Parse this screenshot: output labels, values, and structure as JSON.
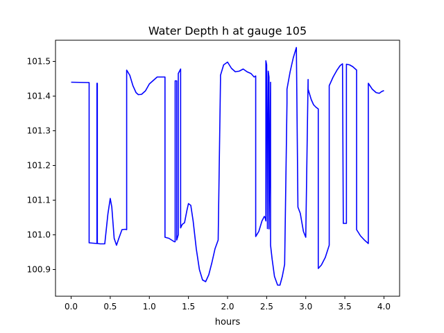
{
  "chart_data": {
    "type": "line",
    "title": "Water Depth h at gauge 105",
    "xlabel": "hours",
    "ylabel": "",
    "xlim": [
      -0.2,
      4.2
    ],
    "ylim": [
      100.823,
      101.561
    ],
    "grid": false,
    "x_ticks": [
      {
        "value": 0.0,
        "label": "0.0"
      },
      {
        "value": 0.5,
        "label": "0.5"
      },
      {
        "value": 1.0,
        "label": "1.0"
      },
      {
        "value": 1.5,
        "label": "1.5"
      },
      {
        "value": 2.0,
        "label": "2.0"
      },
      {
        "value": 2.5,
        "label": "2.5"
      },
      {
        "value": 3.0,
        "label": "3.0"
      },
      {
        "value": 3.5,
        "label": "3.5"
      },
      {
        "value": 4.0,
        "label": "4.0"
      }
    ],
    "y_ticks": [
      {
        "value": 100.9,
        "label": "100.9"
      },
      {
        "value": 101.0,
        "label": "101.0"
      },
      {
        "value": 101.1,
        "label": "101.1"
      },
      {
        "value": 101.2,
        "label": "101.2"
      },
      {
        "value": 101.3,
        "label": "101.3"
      },
      {
        "value": 101.4,
        "label": "101.4"
      },
      {
        "value": 101.5,
        "label": "101.5"
      }
    ],
    "series": [
      {
        "color": "#0000ff",
        "x": [
          0.0,
          0.23,
          0.23,
          0.33,
          0.33,
          0.335,
          0.335,
          0.37,
          0.43,
          0.47,
          0.5,
          0.52,
          0.55,
          0.58,
          0.61,
          0.65,
          0.69,
          0.71,
          0.71,
          0.75,
          0.79,
          0.83,
          0.86,
          0.9,
          0.95,
          1.0,
          1.05,
          1.1,
          1.16,
          1.2,
          1.2,
          1.25,
          1.32,
          1.33,
          1.33,
          1.35,
          1.35,
          1.37,
          1.37,
          1.4,
          1.4,
          1.42,
          1.42,
          1.45,
          1.48,
          1.5,
          1.53,
          1.56,
          1.6,
          1.64,
          1.68,
          1.72,
          1.76,
          1.8,
          1.84,
          1.88,
          1.91,
          1.91,
          1.95,
          2.0,
          2.05,
          2.1,
          2.15,
          2.2,
          2.25,
          2.3,
          2.34,
          2.36,
          2.36,
          2.4,
          2.44,
          2.47,
          2.48,
          2.49,
          2.49,
          2.5,
          2.51,
          2.51,
          2.52,
          2.53,
          2.53,
          2.55,
          2.55,
          2.57,
          2.6,
          2.64,
          2.67,
          2.7,
          2.73,
          2.76,
          2.76,
          2.8,
          2.84,
          2.88,
          2.9,
          2.9,
          2.93,
          2.97,
          3.0,
          3.03,
          3.03,
          3.07,
          3.1,
          3.13,
          3.16,
          3.16,
          3.2,
          3.25,
          3.3,
          3.3,
          3.35,
          3.4,
          3.44,
          3.47,
          3.47,
          3.48,
          3.48,
          3.52,
          3.52,
          3.56,
          3.6,
          3.65,
          3.65,
          3.7,
          3.75,
          3.8,
          3.8,
          3.85,
          3.9,
          3.94,
          3.97,
          4.0
        ],
        "values": [
          101.44,
          101.439,
          100.977,
          100.975,
          101.437,
          101.437,
          100.975,
          100.974,
          100.974,
          101.06,
          101.105,
          101.08,
          100.99,
          100.97,
          100.99,
          101.015,
          101.016,
          101.015,
          101.475,
          101.46,
          101.43,
          101.41,
          101.404,
          101.405,
          101.415,
          101.435,
          101.445,
          101.455,
          101.455,
          101.455,
          100.993,
          100.99,
          100.98,
          100.98,
          101.444,
          101.444,
          100.985,
          101.0,
          101.465,
          101.478,
          101.02,
          101.03,
          101.03,
          101.035,
          101.07,
          101.09,
          101.085,
          101.04,
          100.96,
          100.9,
          100.87,
          100.865,
          100.885,
          100.92,
          100.96,
          100.985,
          101.45,
          101.46,
          101.49,
          101.498,
          101.48,
          101.47,
          101.472,
          101.478,
          101.47,
          101.465,
          101.455,
          101.458,
          100.995,
          101.01,
          101.04,
          101.053,
          101.05,
          101.04,
          101.502,
          101.49,
          101.02,
          101.018,
          101.472,
          101.455,
          101.017,
          101.44,
          100.97,
          100.93,
          100.88,
          100.855,
          100.855,
          100.88,
          100.915,
          101.38,
          101.42,
          101.47,
          101.51,
          101.54,
          101.08,
          101.08,
          101.062,
          101.01,
          100.993,
          101.448,
          101.42,
          101.39,
          101.375,
          101.368,
          101.363,
          100.903,
          100.913,
          100.935,
          100.97,
          101.43,
          101.455,
          101.475,
          101.488,
          101.493,
          101.492,
          101.035,
          101.033,
          101.033,
          101.492,
          101.49,
          101.485,
          101.475,
          101.015,
          100.997,
          100.985,
          100.975,
          101.437,
          101.42,
          101.41,
          101.408,
          101.413,
          101.416
        ]
      }
    ]
  }
}
